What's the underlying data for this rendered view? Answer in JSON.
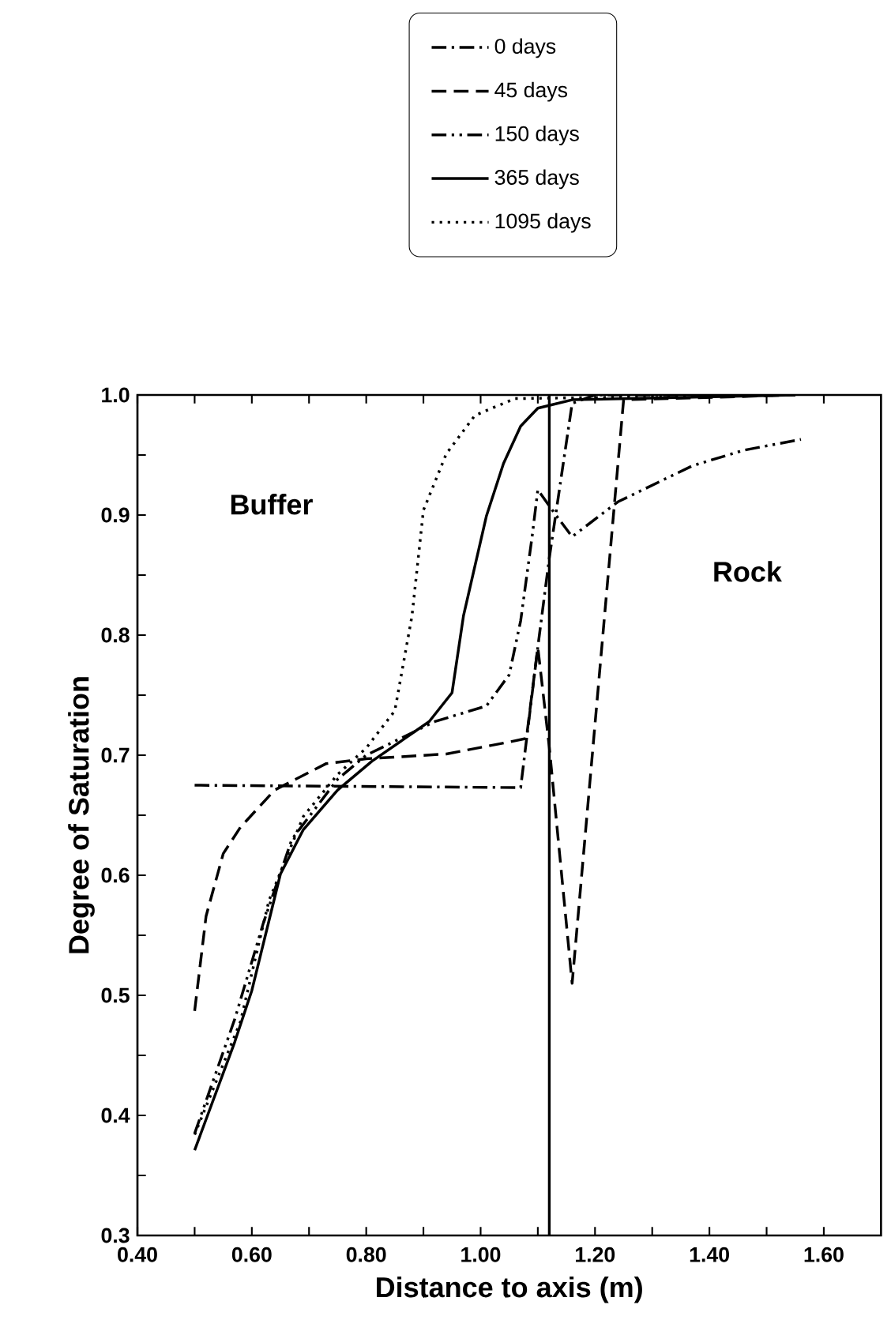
{
  "chart_data": {
    "type": "line",
    "xlabel": "Distance to axis (m)",
    "ylabel": "Degree of Saturation",
    "xlim": [
      0.4,
      1.7
    ],
    "ylim": [
      0.3,
      1.0
    ],
    "xticks": [
      {
        "value": 0.4,
        "label": "0.40"
      },
      {
        "value": 0.5,
        "label": null
      },
      {
        "value": 0.6,
        "label": "0.60"
      },
      {
        "value": 0.7,
        "label": null
      },
      {
        "value": 0.8,
        "label": "0.80"
      },
      {
        "value": 0.9,
        "label": null
      },
      {
        "value": 1.0,
        "label": "1.00"
      },
      {
        "value": 1.1,
        "label": null
      },
      {
        "value": 1.2,
        "label": "1.20"
      },
      {
        "value": 1.3,
        "label": null
      },
      {
        "value": 1.4,
        "label": "1.40"
      },
      {
        "value": 1.5,
        "label": null
      },
      {
        "value": 1.6,
        "label": "1.60"
      }
    ],
    "yticks": [
      {
        "value": 0.3,
        "label": "0.3"
      },
      {
        "value": 0.35,
        "label": null
      },
      {
        "value": 0.4,
        "label": "0.4"
      },
      {
        "value": 0.45,
        "label": null
      },
      {
        "value": 0.5,
        "label": "0.5"
      },
      {
        "value": 0.55,
        "label": null
      },
      {
        "value": 0.6,
        "label": "0.6"
      },
      {
        "value": 0.65,
        "label": null
      },
      {
        "value": 0.7,
        "label": "0.7"
      },
      {
        "value": 0.75,
        "label": null
      },
      {
        "value": 0.8,
        "label": "0.8"
      },
      {
        "value": 0.85,
        "label": null
      },
      {
        "value": 0.9,
        "label": "0.9"
      },
      {
        "value": 0.95,
        "label": null
      },
      {
        "value": 1.0,
        "label": "1.0"
      }
    ],
    "legend": "top",
    "marker": "none",
    "ref_lines": [
      {
        "axis": "x",
        "value": 1.12,
        "color": "#000000",
        "line_style": "solid"
      }
    ],
    "annotations": [
      "Buffer",
      "Rock"
    ],
    "series": [
      {
        "name": "0 days",
        "color": "#000000",
        "line_style": "dashdot",
        "x": [
          0.5,
          1.07,
          1.1,
          1.12,
          1.16,
          1.2,
          1.55
        ],
        "values": [
          0.675,
          0.673,
          0.79,
          0.864,
          0.993,
          1.0,
          1.0
        ]
      },
      {
        "name": "45 days",
        "color": "#000000",
        "line_style": "dashed",
        "x": [
          0.5,
          0.52,
          0.55,
          0.58,
          0.64,
          0.73,
          0.8,
          0.94,
          1.05,
          1.08,
          1.1,
          1.12,
          1.16,
          1.25,
          1.55
        ],
        "values": [
          0.487,
          0.566,
          0.618,
          0.64,
          0.671,
          0.693,
          0.697,
          0.701,
          0.711,
          0.714,
          0.79,
          0.707,
          0.51,
          0.996,
          1.0
        ]
      },
      {
        "name": "150 days",
        "color": "#000000",
        "line_style": "dashdotdot",
        "x": [
          0.5,
          0.57,
          0.62,
          0.67,
          0.75,
          0.8,
          0.92,
          1.01,
          1.05,
          1.07,
          1.09,
          1.1,
          1.13,
          1.16,
          1.24,
          1.37,
          1.46,
          1.56
        ],
        "values": [
          0.385,
          0.48,
          0.56,
          0.63,
          0.68,
          0.7,
          0.728,
          0.741,
          0.767,
          0.812,
          0.882,
          0.921,
          0.901,
          0.882,
          0.911,
          0.941,
          0.954,
          0.963
        ]
      },
      {
        "name": "365 days",
        "color": "#000000",
        "line_style": "solid",
        "x": [
          0.5,
          0.57,
          0.6,
          0.65,
          0.69,
          0.75,
          0.81,
          0.91,
          0.95,
          0.97,
          1.01,
          1.04,
          1.07,
          1.1,
          1.16,
          1.55
        ],
        "values": [
          0.371,
          0.461,
          0.504,
          0.601,
          0.638,
          0.671,
          0.695,
          0.728,
          0.752,
          0.816,
          0.899,
          0.943,
          0.974,
          0.989,
          0.996,
          1.0
        ]
      },
      {
        "name": "1095 days",
        "color": "#000000",
        "line_style": "dotted",
        "x": [
          0.5,
          0.58,
          0.63,
          0.69,
          0.75,
          0.8,
          0.85,
          0.88,
          0.9,
          0.94,
          0.99,
          1.06,
          1.55
        ],
        "values": [
          0.384,
          0.478,
          0.579,
          0.649,
          0.684,
          0.706,
          0.737,
          0.816,
          0.904,
          0.951,
          0.983,
          0.997,
          1.0
        ]
      }
    ]
  }
}
